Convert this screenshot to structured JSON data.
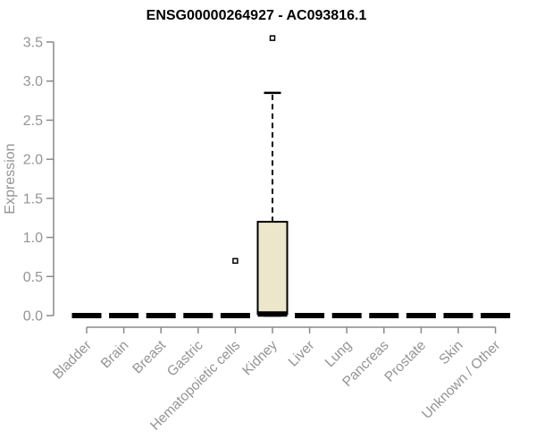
{
  "chart_data": {
    "type": "boxplot",
    "title": "ENSG00000264927 - AC093816.1",
    "ylabel": "Expression",
    "xlabel": "",
    "ylim": [
      0.0,
      3.5
    ],
    "y_ticks": [
      0.0,
      0.5,
      1.0,
      1.5,
      2.0,
      2.5,
      3.0,
      3.5
    ],
    "y_tick_labels": [
      "0.0",
      "0.5",
      "1.0",
      "1.5",
      "2.0",
      "2.5",
      "3.0",
      "3.5"
    ],
    "grid": false,
    "legend_position": "none",
    "categories": [
      "Bladder",
      "Brain",
      "Breast",
      "Gastric",
      "Hematopoietic cells",
      "Kidney",
      "Liver",
      "Lung",
      "Pancreas",
      "Prostate",
      "Skin",
      "Unknown / Other"
    ],
    "boxes": [
      {
        "category": "Bladder",
        "whisker_low": 0,
        "q1": 0,
        "median": 0,
        "q3": 0,
        "whisker_high": 0,
        "outliers": []
      },
      {
        "category": "Brain",
        "whisker_low": 0,
        "q1": 0,
        "median": 0,
        "q3": 0,
        "whisker_high": 0,
        "outliers": []
      },
      {
        "category": "Breast",
        "whisker_low": 0,
        "q1": 0,
        "median": 0,
        "q3": 0,
        "whisker_high": 0,
        "outliers": []
      },
      {
        "category": "Gastric",
        "whisker_low": 0,
        "q1": 0,
        "median": 0,
        "q3": 0,
        "whisker_high": 0,
        "outliers": []
      },
      {
        "category": "Hematopoietic cells",
        "whisker_low": 0,
        "q1": 0,
        "median": 0,
        "q3": 0,
        "whisker_high": 0,
        "outliers": [
          0.7
        ]
      },
      {
        "category": "Kidney",
        "whisker_low": 0,
        "q1": 0.02,
        "median": 0.02,
        "q3": 1.2,
        "whisker_high": 2.85,
        "outliers": [
          3.55
        ]
      },
      {
        "category": "Liver",
        "whisker_low": 0,
        "q1": 0,
        "median": 0,
        "q3": 0,
        "whisker_high": 0,
        "outliers": []
      },
      {
        "category": "Lung",
        "whisker_low": 0,
        "q1": 0,
        "median": 0,
        "q3": 0,
        "whisker_high": 0,
        "outliers": []
      },
      {
        "category": "Pancreas",
        "whisker_low": 0,
        "q1": 0,
        "median": 0,
        "q3": 0,
        "whisker_high": 0,
        "outliers": []
      },
      {
        "category": "Prostate",
        "whisker_low": 0,
        "q1": 0,
        "median": 0,
        "q3": 0,
        "whisker_high": 0,
        "outliers": []
      },
      {
        "category": "Skin",
        "whisker_low": 0,
        "q1": 0,
        "median": 0,
        "q3": 0,
        "whisker_high": 0,
        "outliers": []
      },
      {
        "category": "Unknown / Other",
        "whisker_low": 0,
        "q1": 0,
        "median": 0,
        "q3": 0,
        "whisker_high": 0,
        "outliers": []
      }
    ],
    "colors": {
      "box_fill": "#ECE7CB",
      "box_stroke": "#000000",
      "median": "#000000",
      "whisker": "#000000",
      "outlier_fill": "#ffffff",
      "outlier_stroke": "#000000",
      "axis": "#8a8a8a",
      "tick_label": "#949494",
      "title": "#000000",
      "background": "#ffffff"
    }
  }
}
